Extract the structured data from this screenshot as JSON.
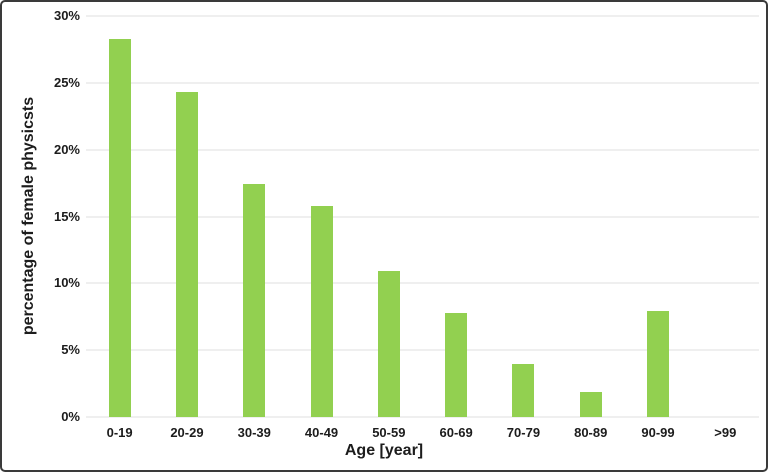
{
  "chart_data": {
    "type": "bar",
    "categories": [
      "0-19",
      "20-29",
      "30-39",
      "40-49",
      "50-59",
      "60-69",
      "70-79",
      "80-89",
      "90-99",
      ">99"
    ],
    "values": [
      28.3,
      24.3,
      17.4,
      15.8,
      10.9,
      7.8,
      4.0,
      1.9,
      7.9,
      0
    ],
    "title": "",
    "xlabel": "Age [year]",
    "ylabel": "percentage of female physicsts",
    "ylim": [
      0,
      30
    ],
    "yticks": [
      30,
      25,
      20,
      15,
      10,
      5,
      0
    ],
    "ytick_suffix": "%",
    "grid": true,
    "legend": false,
    "bar_color": "#92d050"
  },
  "colors": {
    "bar": "#92d050",
    "gridline": "#efefef",
    "text": "#1c1c1c",
    "frame_border": "#3a3a3a",
    "background": "#ffffff"
  }
}
